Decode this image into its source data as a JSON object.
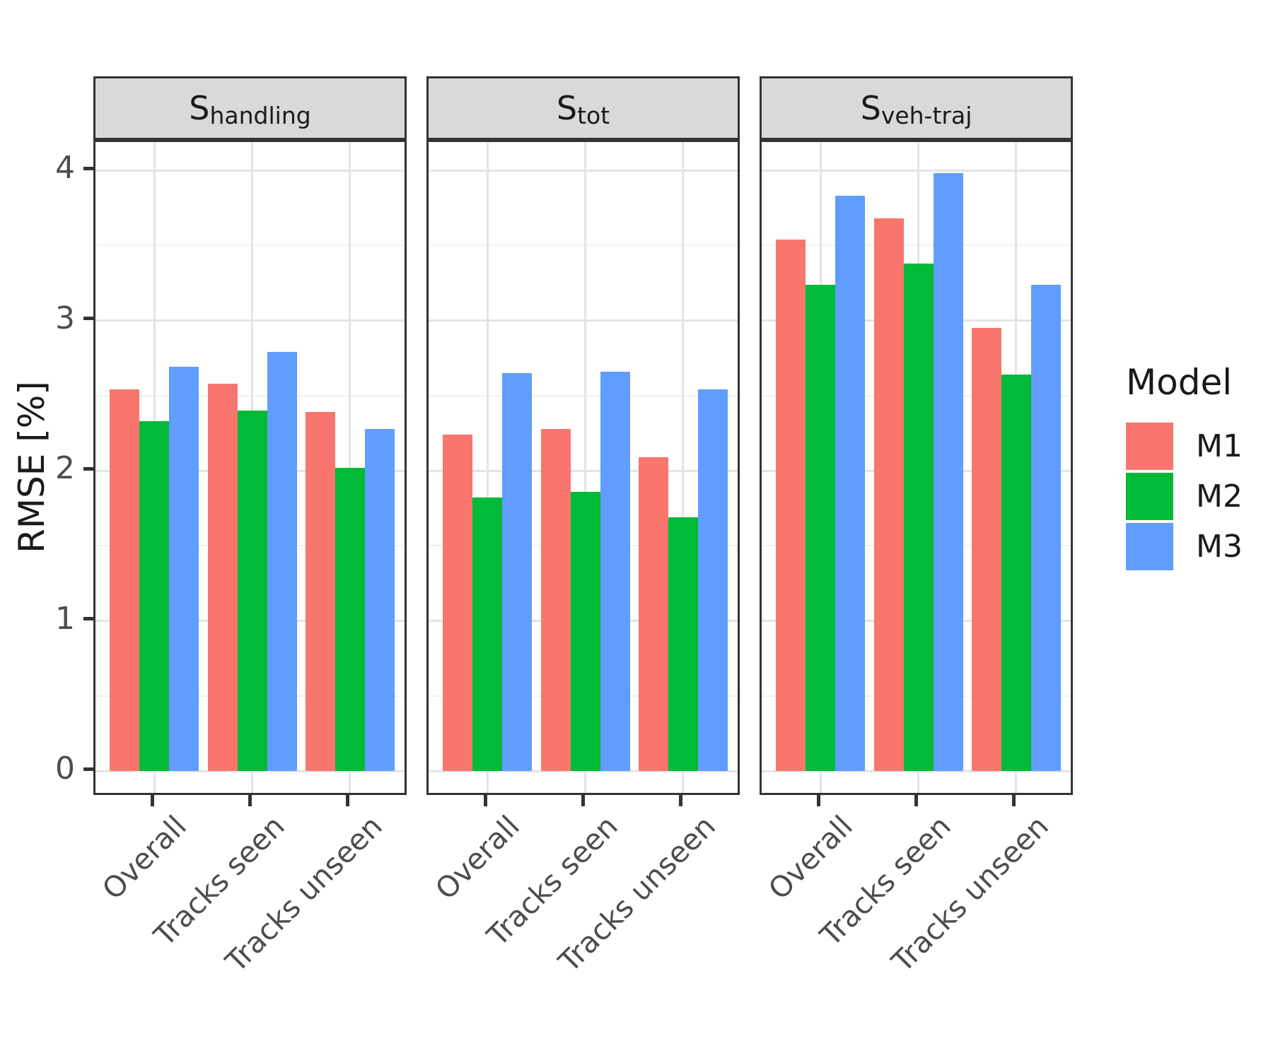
{
  "chart_data": {
    "type": "bar",
    "title": "",
    "ylabel": "RMSE [%]",
    "xlabel": "",
    "ylim": [
      -0.17,
      4.19
    ],
    "yticks": [
      0,
      1,
      2,
      3,
      4
    ],
    "yminor": [
      0.5,
      1.5,
      2.5,
      3.5
    ],
    "grid": "on",
    "legend_position": "right",
    "legend_title": "Model",
    "categories": [
      "Overall",
      "Tracks seen",
      "Tracks unseen"
    ],
    "series_colors": {
      "M1": "#F8766D",
      "M2": "#00BA38",
      "M3": "#619CFF"
    },
    "facets": [
      {
        "title_main": "S",
        "title_sub": "handling",
        "series": [
          {
            "name": "M1",
            "values": [
              2.54,
              2.58,
              2.39
            ]
          },
          {
            "name": "M2",
            "values": [
              2.33,
              2.4,
              2.02
            ]
          },
          {
            "name": "M3",
            "values": [
              2.69,
              2.79,
              2.28
            ]
          }
        ]
      },
      {
        "title_main": "S",
        "title_sub": "tot",
        "series": [
          {
            "name": "M1",
            "values": [
              2.24,
              2.28,
              2.09
            ]
          },
          {
            "name": "M2",
            "values": [
              1.82,
              1.86,
              1.69
            ]
          },
          {
            "name": "M3",
            "values": [
              2.65,
              2.66,
              2.54
            ]
          }
        ]
      },
      {
        "title_main": "S",
        "title_sub": "veh-traj",
        "series": [
          {
            "name": "M1",
            "values": [
              3.54,
              3.68,
              2.95
            ]
          },
          {
            "name": "M2",
            "values": [
              3.24,
              3.38,
              2.64
            ]
          },
          {
            "name": "M3",
            "values": [
              3.83,
              3.98,
              3.24
            ]
          }
        ]
      }
    ],
    "legend": {
      "title": "Model",
      "entries": [
        {
          "label": "M1",
          "color": "#F8766D"
        },
        {
          "label": "M2",
          "color": "#00BA38"
        },
        {
          "label": "M3",
          "color": "#619CFF"
        }
      ]
    }
  }
}
